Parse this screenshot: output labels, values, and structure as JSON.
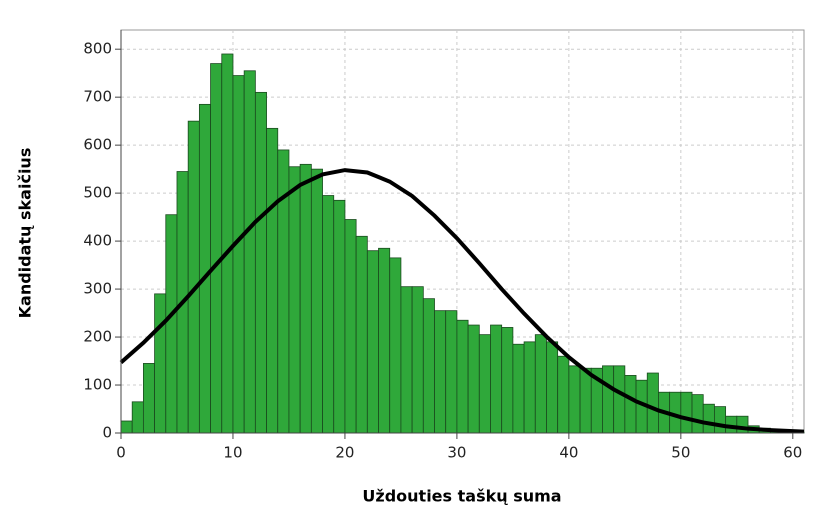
{
  "chart_data": {
    "type": "histogram",
    "xlabel": "Uždouties taškų suma",
    "ylabel": "Kandidatų skaičius",
    "bins": [
      0,
      1,
      2,
      3,
      4,
      5,
      6,
      7,
      8,
      9,
      10,
      11,
      12,
      13,
      14,
      15,
      16,
      17,
      18,
      19,
      20,
      21,
      22,
      23,
      24,
      25,
      26,
      27,
      28,
      29,
      30,
      31,
      32,
      33,
      34,
      35,
      36,
      37,
      38,
      39,
      40,
      41,
      42,
      43,
      44,
      45,
      46,
      47,
      48,
      49,
      50,
      51,
      52,
      53,
      54,
      55,
      56,
      57,
      58,
      59,
      60,
      61
    ],
    "counts": [
      25,
      65,
      145,
      290,
      455,
      545,
      650,
      685,
      770,
      790,
      745,
      755,
      710,
      635,
      590,
      555,
      560,
      550,
      495,
      485,
      445,
      410,
      380,
      385,
      365,
      305,
      305,
      280,
      255,
      255,
      235,
      225,
      205,
      225,
      220,
      185,
      190,
      205,
      190,
      160,
      140,
      135,
      135,
      140,
      140,
      120,
      110,
      125,
      85,
      85,
      85,
      80,
      60,
      55,
      35,
      35,
      15,
      10,
      5,
      3,
      2
    ],
    "color": "#2fa83a",
    "curve": {
      "x": [
        0,
        2,
        4,
        6,
        8,
        10,
        12,
        14,
        16,
        18,
        20,
        22,
        24,
        26,
        28,
        30,
        32,
        34,
        36,
        38,
        40,
        42,
        44,
        46,
        48,
        50,
        52,
        54,
        56,
        58,
        60,
        61
      ],
      "y": [
        147,
        188,
        234,
        285,
        338,
        390,
        440,
        483,
        517,
        539,
        548,
        543,
        524,
        494,
        453,
        406,
        354,
        300,
        249,
        201,
        158,
        121,
        91,
        66,
        47,
        33,
        22,
        14,
        9,
        6,
        4,
        3
      ],
      "color": "#000000"
    },
    "xlim": [
      0,
      61
    ],
    "ylim": [
      0,
      840
    ],
    "xticks": [
      0,
      10,
      20,
      30,
      40,
      50,
      60
    ],
    "yticks": [
      0,
      100,
      200,
      300,
      400,
      500,
      600,
      700,
      800
    ],
    "grid": true
  }
}
